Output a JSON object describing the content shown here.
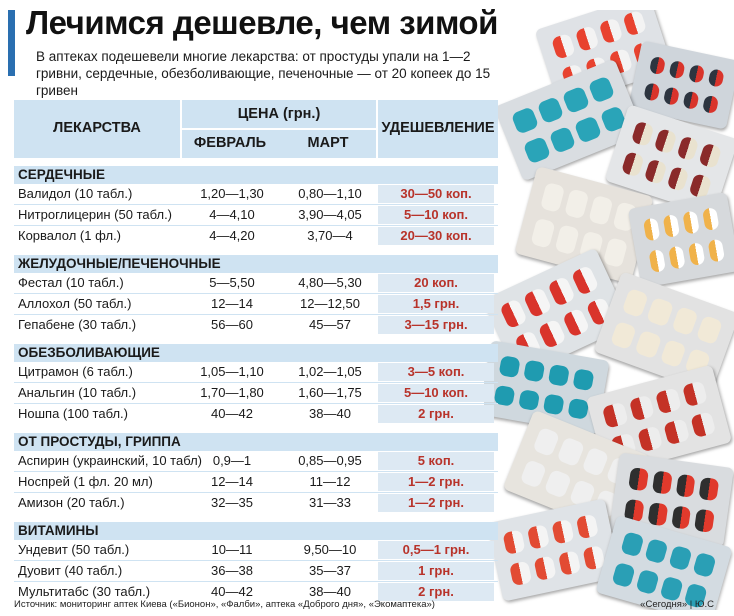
{
  "title": "Лечимся дешевле, чем зимой",
  "subtitle": "В аптеках подешевели многие лекарства: от простуды упали на 1—2 гривни, сердечные, обезболивающие, печеночные — от 20 копеек до 15 гривен",
  "table": {
    "col_drugs": "ЛЕКАРСТВА",
    "col_price_group": "ЦЕНА (грн.)",
    "col_feb": "ФЕВРАЛЬ",
    "col_mar": "МАРТ",
    "col_discount": "УДЕШЕВЛЕНИЕ",
    "categories": [
      {
        "name": "СЕРДЕЧНЫЕ",
        "rows": [
          {
            "drug": "Валидол (10 табл.)",
            "feb": "1,20—1,30",
            "mar": "0,80—1,10",
            "discount": "30—50 коп."
          },
          {
            "drug": "Нитроглицерин (50 табл.)",
            "feb": "4—4,10",
            "mar": "3,90—4,05",
            "discount": "5—10 коп."
          },
          {
            "drug": "Корвалол (1 фл.)",
            "feb": "4—4,20",
            "mar": "3,70—4",
            "discount": "20—30 коп."
          }
        ]
      },
      {
        "name": "ЖЕЛУДОЧНЫЕ/ПЕЧЕНОЧНЫЕ",
        "rows": [
          {
            "drug": "Фестал (10 табл.)",
            "feb": "5—5,50",
            "mar": "4,80—5,30",
            "discount": "20 коп."
          },
          {
            "drug": "Аллохол (50 табл.)",
            "feb": "12—14",
            "mar": "12—12,50",
            "discount": "1,5 грн."
          },
          {
            "drug": "Гепабене (30 табл.)",
            "feb": "56—60",
            "mar": "45—57",
            "discount": "3—15 грн."
          }
        ]
      },
      {
        "name": "ОБЕЗБОЛИВАЮЩИЕ",
        "rows": [
          {
            "drug": "Цитрамон (6 табл.)",
            "feb": "1,05—1,10",
            "mar": "1,02—1,05",
            "discount": "3—5 коп."
          },
          {
            "drug": "Анальгин (10 табл.)",
            "feb": "1,70—1,80",
            "mar": "1,60—1,75",
            "discount": "5—10 коп."
          },
          {
            "drug": "Ношпа (100 табл.)",
            "feb": "40—42",
            "mar": "38—40",
            "discount": "2 грн."
          }
        ]
      },
      {
        "name": "ОТ ПРОСТУДЫ, ГРИППА",
        "rows": [
          {
            "drug": "Аспирин (украинский, 10 табл)",
            "feb": "0,9—1",
            "mar": "0,85—0,95",
            "discount": "5 коп."
          },
          {
            "drug": "Носпрей (1 фл. 20 мл)",
            "feb": "12—14",
            "mar": "11—12",
            "discount": "1—2 грн."
          },
          {
            "drug": "Амизон (20 табл.)",
            "feb": "32—35",
            "mar": "31—33",
            "discount": "1—2 грн."
          }
        ]
      },
      {
        "name": "ВИТАМИНЫ",
        "rows": [
          {
            "drug": "Ундевит (50 табл.)",
            "feb": "10—11",
            "mar": "9,50—10",
            "discount": "0,5—1 грн."
          },
          {
            "drug": "Дуовит (40 табл.)",
            "feb": "36—38",
            "mar": "35—37",
            "discount": "1 грн."
          },
          {
            "drug": "Мультитабс (30 табл.)",
            "feb": "40—42",
            "mar": "38—40",
            "discount": "2 грн."
          }
        ]
      }
    ]
  },
  "source": "Источник: мониторинг аптек Киева («Бионон», «Фалби», аптека «Доброго дня», «Экомаптека»)",
  "credit": "«Сегодня» | Ю.С",
  "colors": {
    "header_bg": "#cfe3f2",
    "discount_bg": "#dde9f3",
    "discount_text": "#b8332a",
    "accent": "#2a6fb0"
  }
}
